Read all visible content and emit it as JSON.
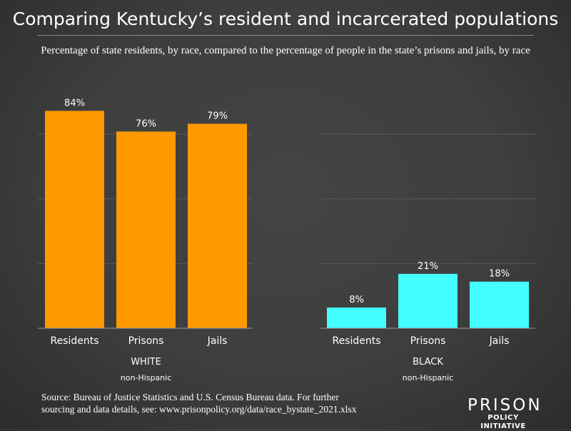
{
  "title": "Comparing Kentucky’s resident and incarcerated populations",
  "subtitle": "Percentage of state residents, by race, compared to the percentage of people in the state’s prisons and jails, by race",
  "source_line1": "Source: Bureau of Justice Statistics and U.S. Census Bureau data. For further",
  "source_line2": "sourcing and data details, see: www.prisonpolicy.org/data/race_bystate_2021.xlsx",
  "logo": {
    "line1": "PRISON",
    "line2": "POLICY INITIATIVE"
  },
  "chart_data": [
    {
      "type": "bar",
      "group_label": "WHITE",
      "group_sublabel": "non-Hispanic",
      "categories": [
        "Residents",
        "Prisons",
        "Jails"
      ],
      "values": [
        84,
        76,
        79
      ],
      "data_labels": [
        "84%",
        "76%",
        "79%"
      ],
      "ylim": [
        0,
        100
      ],
      "gridlines": [
        25,
        50,
        75
      ],
      "grid": true,
      "color": "#ff9900"
    },
    {
      "type": "bar",
      "group_label": "BLACK",
      "group_sublabel": "non-Hispanic",
      "categories": [
        "Residents",
        "Prisons",
        "Jails"
      ],
      "values": [
        8,
        21,
        18
      ],
      "data_labels": [
        "8%",
        "21%",
        "18%"
      ],
      "ylim": [
        0,
        100
      ],
      "gridlines": [
        25,
        50,
        75
      ],
      "grid": true,
      "color": "#44ffff"
    }
  ]
}
